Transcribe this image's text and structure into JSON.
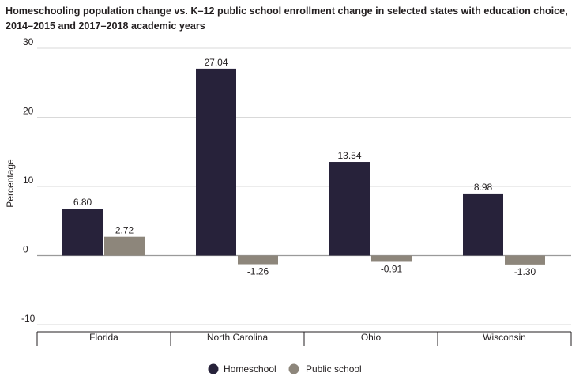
{
  "chart_data": {
    "type": "bar",
    "title_lines": [
      "Homeschooling population change vs. K–12 public school enrollment change in selected states with education choice,",
      "2014–2015 and 2017–2018 academic years"
    ],
    "categories": [
      "Florida",
      "North Carolina",
      "Ohio",
      "Wisconsin"
    ],
    "series": [
      {
        "name": "Homeschool",
        "color": "#27223a",
        "values": [
          6.8,
          27.04,
          13.54,
          8.98
        ],
        "labels": [
          "6.80",
          "27.04",
          "13.54",
          "8.98"
        ]
      },
      {
        "name": "Public school",
        "color": "#8d867b",
        "values": [
          2.72,
          -1.26,
          -0.91,
          -1.3
        ],
        "labels": [
          "2.72",
          "-1.26",
          "-0.91",
          "-1.30"
        ]
      }
    ],
    "ylabel": "Percentage",
    "xlabel": "",
    "ylim": [
      -10,
      30
    ],
    "yticks": [
      30,
      20,
      10,
      0,
      -10
    ],
    "grid": true,
    "legend_position": "bottom-center",
    "gridline_color": "#d9d9d9",
    "zero_line_color": "#9a9a9a"
  }
}
